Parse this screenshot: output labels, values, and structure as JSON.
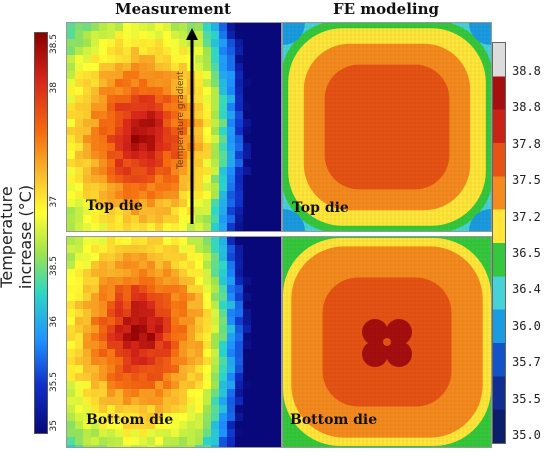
{
  "columns": {
    "left_title": "Measurement",
    "right_title": "FE modeling"
  },
  "y_axis_label": "Temperature increase (°C)",
  "left_colorbar": {
    "top_ticks": [
      "38.5",
      "38",
      "37",
      "36"
    ],
    "bottom_ticks": [
      "38.5",
      "36",
      "35.5",
      "35"
    ],
    "colors": [
      "#8b0000",
      "#d7261a",
      "#f46d10",
      "#f9b92b",
      "#ffff33",
      "#9fe34d",
      "#2dd6c6",
      "#1e90ff",
      "#1030c8",
      "#08087a"
    ]
  },
  "right_colorbar": {
    "ticks": [
      "38.8",
      "38.8",
      "37.8",
      "37.5",
      "37.2",
      "36.5",
      "36.4",
      "36.0",
      "35.7",
      "35.5",
      "35.0"
    ],
    "colors": [
      "#dcdcdc",
      "#a50f0f",
      "#c82316",
      "#e65314",
      "#f58a1e",
      "#ffe639",
      "#35c83c",
      "#46d2d6",
      "#1b9be0",
      "#1254c8",
      "#122e90",
      "#0b1f6a"
    ]
  },
  "panels": {
    "measure_top_label": "Top die",
    "measure_bottom_label": "Bottom die",
    "model_top_label": "Top die",
    "model_bottom_label": "Bottom die",
    "arrow_text": "Temperature gradient"
  }
}
